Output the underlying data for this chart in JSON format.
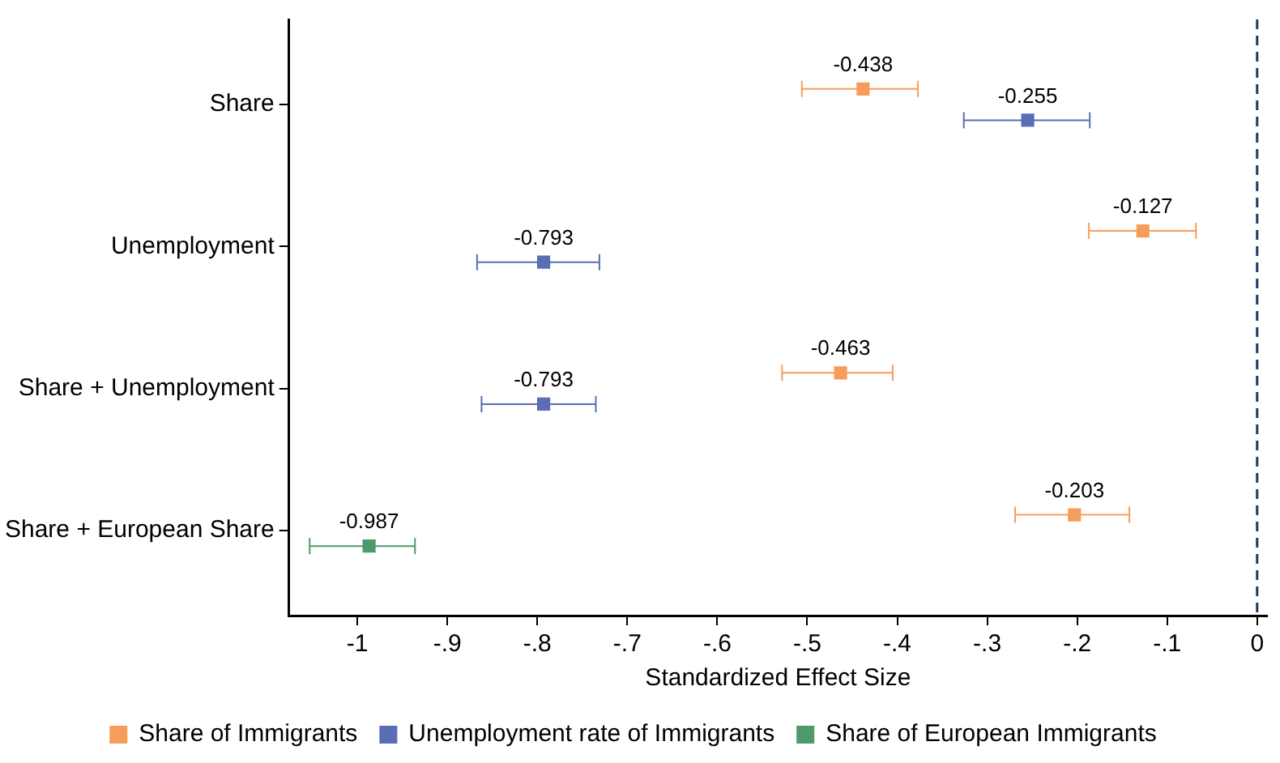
{
  "chart_data": {
    "type": "scatter",
    "orientation": "horizontal",
    "xlabel": "Standardized Effect Size",
    "categories": [
      "Share",
      "Unemployment",
      "Share + Unemployment",
      "Share + European Share"
    ],
    "series": [
      {
        "name": "Share of Immigrants",
        "color": "#f79d5c",
        "values": [
          -0.438,
          -0.127,
          -0.463,
          -0.203
        ],
        "errors": [
          [
            -0.506,
            -0.377
          ],
          [
            -0.187,
            -0.068
          ],
          [
            -0.528,
            -0.405
          ],
          [
            -0.269,
            -0.142
          ]
        ],
        "value_labels": [
          "-0.438",
          "-0.127",
          "-0.463",
          "-0.203"
        ]
      },
      {
        "name": "Unemployment rate of Immigrants",
        "color": "#5a6db5",
        "values": [
          -0.255,
          -0.793,
          -0.793,
          null
        ],
        "errors": [
          [
            -0.326,
            -0.186
          ],
          [
            -0.867,
            -0.731
          ],
          [
            -0.862,
            -0.735
          ],
          null
        ],
        "value_labels": [
          "-0.255",
          "-0.793",
          "-0.793",
          null
        ]
      },
      {
        "name": "Share of European Immigrants",
        "color": "#4f9a6c",
        "values": [
          null,
          null,
          null,
          -0.987
        ],
        "errors": [
          null,
          null,
          null,
          [
            -1.053,
            -0.936
          ]
        ],
        "value_labels": [
          null,
          null,
          null,
          "-0.987"
        ]
      }
    ],
    "xlim": [
      -1.076,
      0.011
    ],
    "xticks": [
      {
        "value": -1,
        "label": "-1"
      },
      {
        "value": -0.9,
        "label": "-.9"
      },
      {
        "value": -0.8,
        "label": "-.8"
      },
      {
        "value": -0.7,
        "label": "-.7"
      },
      {
        "value": -0.6,
        "label": "-.6"
      },
      {
        "value": -0.5,
        "label": "-.5"
      },
      {
        "value": -0.4,
        "label": "-.4"
      },
      {
        "value": -0.3,
        "label": "-.3"
      },
      {
        "value": -0.2,
        "label": "-.2"
      },
      {
        "value": -0.1,
        "label": "-.1"
      },
      0
    ],
    "ref_lines": [
      {
        "axis": "x",
        "value": 0,
        "color": "#1f3a5f",
        "line_style": "dashed"
      }
    ],
    "marker": "square",
    "grid": false,
    "legend": "bottom"
  }
}
